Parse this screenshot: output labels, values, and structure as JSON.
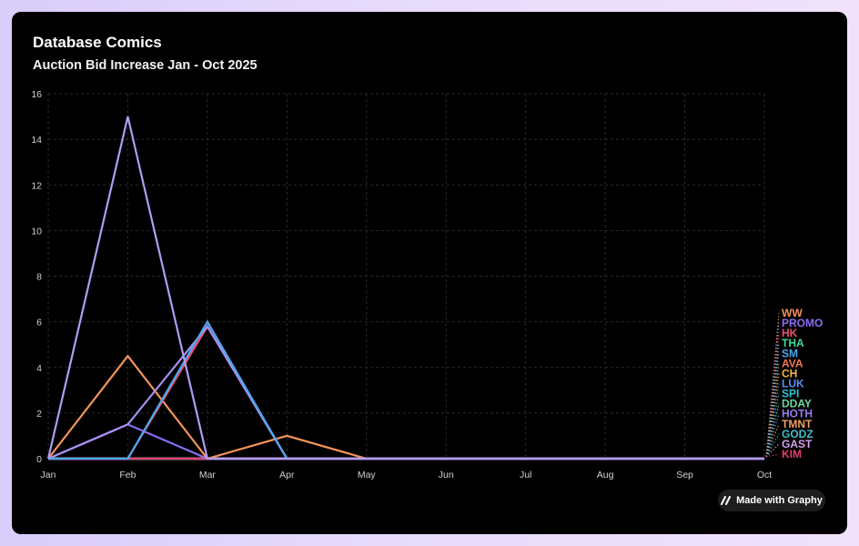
{
  "chart_data": {
    "type": "line",
    "title": "Database Comics",
    "subtitle": "Auction Bid Increase Jan - Oct 2025",
    "categories": [
      "Jan",
      "Feb",
      "Mar",
      "Apr",
      "May",
      "Jun",
      "Jul",
      "Aug",
      "Sep",
      "Oct"
    ],
    "ylim": [
      0,
      16
    ],
    "yticks": [
      0,
      2,
      4,
      6,
      8,
      10,
      12,
      14,
      16
    ],
    "grid": true,
    "legend": "right, labels at line ends",
    "series": [
      {
        "name": "WW",
        "color": "#f5935a",
        "values": [
          0,
          4.5,
          0,
          1,
          0,
          0,
          0,
          0,
          0,
          0
        ]
      },
      {
        "name": "PROMO",
        "color": "#8b6cf5",
        "values": [
          0,
          1.5,
          0,
          0,
          0,
          0,
          0,
          0,
          0,
          0
        ]
      },
      {
        "name": "HK",
        "color": "#f0506e",
        "values": [
          0,
          0,
          5.8,
          0,
          0,
          0,
          0,
          0,
          0,
          0
        ]
      },
      {
        "name": "THA",
        "color": "#3ddc97",
        "values": [
          0,
          0,
          0,
          0,
          0,
          0,
          0,
          0,
          0,
          0
        ]
      },
      {
        "name": "SM",
        "color": "#4aa8f0",
        "values": [
          0,
          0,
          6,
          0,
          0,
          0,
          0,
          0,
          0,
          0
        ]
      },
      {
        "name": "AVA",
        "color": "#f07a5a",
        "values": [
          0,
          0,
          0,
          0,
          0,
          0,
          0,
          0,
          0,
          0
        ]
      },
      {
        "name": "CH",
        "color": "#f5b942",
        "values": [
          0,
          0,
          0,
          0,
          0,
          0,
          0,
          0,
          0,
          0
        ]
      },
      {
        "name": "LUK",
        "color": "#5b8def",
        "values": [
          0,
          0,
          0,
          0,
          0,
          0,
          0,
          0,
          0,
          0
        ]
      },
      {
        "name": "SPI",
        "color": "#2ec4d6",
        "values": [
          0,
          0,
          0,
          0,
          0,
          0,
          0,
          0,
          0,
          0
        ]
      },
      {
        "name": "DDAY",
        "color": "#6cd4a0",
        "values": [
          0,
          0,
          0,
          0,
          0,
          0,
          0,
          0,
          0,
          0
        ]
      },
      {
        "name": "HOTH",
        "color": "#9a7cf0",
        "values": [
          0,
          0,
          0,
          0,
          0,
          0,
          0,
          0,
          0,
          0
        ]
      },
      {
        "name": "TMNT",
        "color": "#f0a060",
        "values": [
          0,
          0,
          0,
          0,
          0,
          0,
          0,
          0,
          0,
          0
        ]
      },
      {
        "name": "GODZ",
        "color": "#3fc1c9",
        "values": [
          0,
          0,
          0,
          0,
          0,
          0,
          0,
          0,
          0,
          0
        ]
      },
      {
        "name": "GAST",
        "color": "#d9a0f0",
        "values": [
          0,
          0,
          0,
          0,
          0,
          0,
          0,
          0,
          0,
          0
        ]
      },
      {
        "name": "KIM",
        "color": "#e0406a",
        "values": [
          0,
          0,
          0,
          0,
          0,
          0,
          0,
          0,
          0,
          0
        ]
      },
      {
        "name": "",
        "color": "#b19cf5",
        "values": [
          0,
          15,
          0,
          0,
          0,
          0,
          0,
          0,
          0,
          0
        ]
      },
      {
        "name": "",
        "color": "#a890f0",
        "values": [
          0,
          1.5,
          5.8,
          0,
          0,
          0,
          0,
          0,
          0,
          0
        ]
      }
    ]
  },
  "badge": {
    "label": "Made with Graphy"
  }
}
